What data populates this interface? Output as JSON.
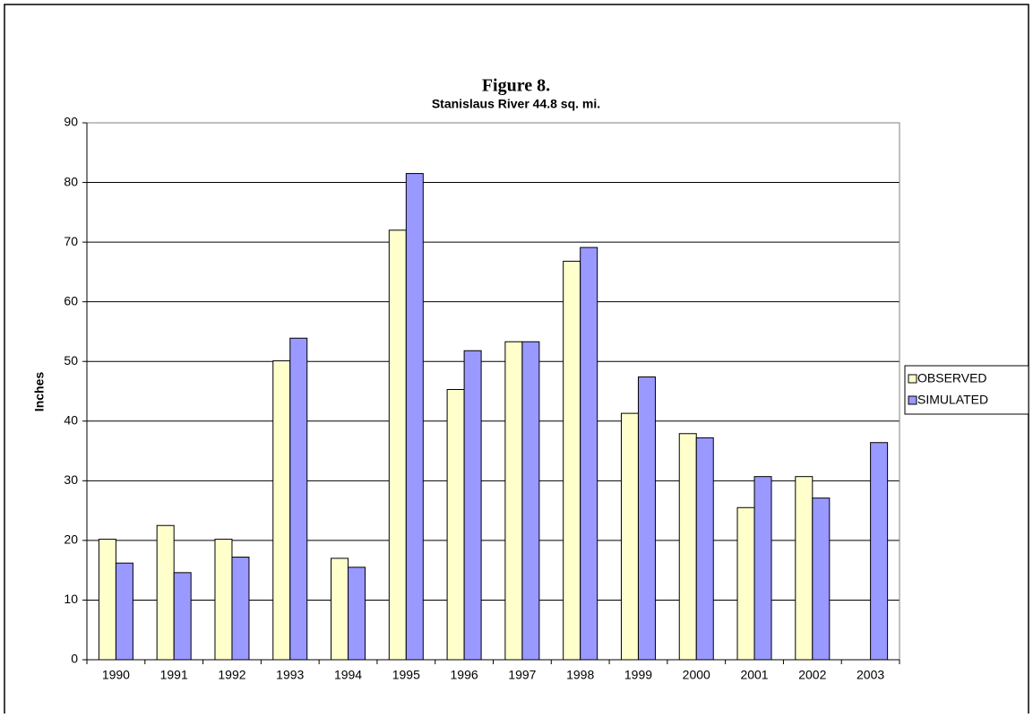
{
  "chart_data": {
    "type": "bar",
    "title": "Figure 8.",
    "subtitle": "Stanislaus River 44.8 sq. mi.",
    "y_label": "Inches",
    "categories": [
      "1990",
      "1991",
      "1992",
      "1993",
      "1994",
      "1995",
      "1996",
      "1997",
      "1998",
      "1999",
      "2000",
      "2001",
      "2002",
      "2003"
    ],
    "series": [
      {
        "name": "OBSERVED",
        "color": "#ffffcc",
        "values": [
          20.2,
          22.5,
          20.2,
          50.1,
          17.0,
          72.0,
          45.3,
          53.3,
          66.8,
          41.3,
          37.9,
          25.5,
          30.7,
          null
        ]
      },
      {
        "name": "SIMULATED",
        "color": "#9999ff",
        "values": [
          16.2,
          14.6,
          17.2,
          53.9,
          15.5,
          81.5,
          51.8,
          53.3,
          69.1,
          47.4,
          37.2,
          30.7,
          27.1,
          36.4
        ]
      }
    ],
    "ylim": [
      0,
      90
    ],
    "yticks": [
      0,
      10,
      20,
      30,
      40,
      50,
      60,
      70,
      80,
      90
    ],
    "grid": true,
    "legend": "right"
  }
}
